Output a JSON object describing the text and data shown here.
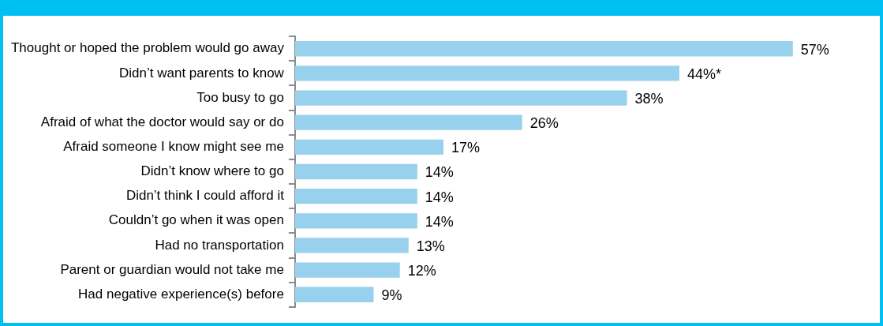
{
  "chart_data": {
    "type": "bar",
    "orientation": "horizontal",
    "categories": [
      "Thought or hoped the problem would go away",
      "Didn’t want parents to know",
      "Too busy to go",
      "Afraid of what the doctor would say or do",
      "Afraid someone I know might see me",
      "Didn’t know where to go",
      "Didn’t think I could afford it",
      "Couldn’t go when it was open",
      "Had no transportation",
      "Parent or guardian would not take me",
      "Had negative experience(s) before"
    ],
    "values": [
      57,
      44,
      38,
      26,
      17,
      14,
      14,
      14,
      13,
      12,
      9
    ],
    "value_labels": [
      "57%",
      "44%*",
      "38%",
      "26%",
      "17%",
      "14%",
      "14%",
      "14%",
      "13%",
      "12%",
      "9%"
    ],
    "color": "#97d1ed",
    "legend": false
  }
}
